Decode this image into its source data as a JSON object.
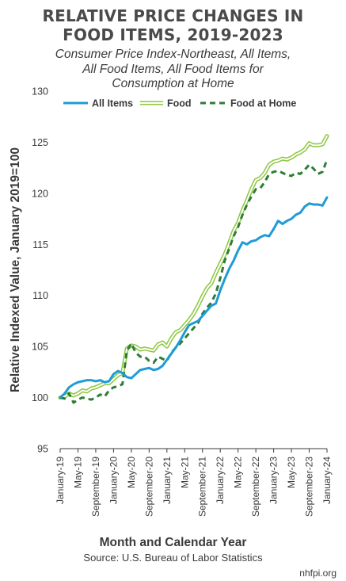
{
  "title_line1": "RELATIVE PRICE CHANGES IN",
  "title_line2": "FOOD ITEMS, 2019-2023",
  "subtitle_line1": "Consumer Price Index-Northeast, All Items,",
  "subtitle_line2": "All Food Items, All Food Items for",
  "subtitle_line3": "Consumption at Home",
  "source": "Source: U.S. Bureau of Labor Statistics",
  "credit": "nhfpi.org",
  "colors": {
    "all_items": "#1f9bd7",
    "food": "#8cc63f",
    "food_at_home": "#2e7d32"
  },
  "chart_data": {
    "type": "line",
    "title": "RELATIVE PRICE CHANGES IN FOOD ITEMS, 2019-2023",
    "subtitle": "Consumer Price Index-Northeast, All Items, All Food Items, All Food Items for Consumption at Home",
    "xlabel": "Month and Calendar Year",
    "ylabel": "Relative Indexed Value, January 2019=100",
    "ylim": [
      95,
      130
    ],
    "yticks": [
      95,
      100,
      105,
      110,
      115,
      120,
      125,
      130
    ],
    "grid": false,
    "legend_position": "top",
    "x_tick_labels": [
      "January-19",
      "May-19",
      "September-19",
      "January-20",
      "May-20",
      "September-20",
      "January-21",
      "May-21",
      "September-21",
      "January-22",
      "May-22",
      "September-22",
      "January-23",
      "May-23",
      "September-23",
      "January-24"
    ],
    "x_start": "January-19",
    "series": [
      {
        "name": "All Items",
        "style": "solid",
        "values": [
          100.0,
          100.4,
          101.0,
          101.3,
          101.5,
          101.6,
          101.7,
          101.7,
          101.6,
          101.7,
          101.5,
          101.6,
          102.3,
          102.6,
          102.4,
          102.0,
          101.9,
          102.3,
          102.7,
          102.8,
          102.9,
          102.7,
          102.8,
          103.1,
          103.7,
          104.3,
          104.9,
          105.6,
          106.4,
          107.1,
          107.3,
          107.5,
          108.0,
          108.5,
          109.0,
          109.2,
          110.5,
          111.6,
          112.6,
          113.4,
          114.4,
          115.2,
          115.0,
          115.3,
          115.4,
          115.7,
          115.9,
          115.8,
          116.5,
          117.3,
          117.0,
          117.3,
          117.5,
          117.9,
          118.1,
          118.7,
          119.0,
          118.9,
          118.9,
          118.8,
          119.6
        ]
      },
      {
        "name": "Food",
        "style": "outline",
        "values": [
          100.0,
          100.1,
          100.4,
          100.2,
          100.4,
          100.7,
          100.6,
          100.9,
          101.0,
          101.2,
          101.4,
          101.4,
          101.8,
          102.2,
          102.4,
          104.8,
          105.1,
          105.0,
          104.7,
          104.8,
          104.7,
          104.6,
          105.2,
          105.4,
          105.0,
          105.8,
          106.4,
          106.6,
          107.1,
          107.6,
          108.2,
          109.0,
          109.9,
          110.7,
          111.2,
          112.2,
          113.1,
          114.0,
          115.1,
          116.3,
          117.1,
          118.3,
          119.3,
          120.4,
          121.3,
          121.5,
          122.0,
          122.8,
          123.1,
          123.2,
          123.4,
          123.3,
          123.5,
          123.8,
          124.0,
          124.3,
          124.9,
          124.7,
          124.7,
          124.8,
          125.6
        ]
      },
      {
        "name": "Food at Home",
        "style": "dashed",
        "values": [
          100.0,
          99.9,
          100.4,
          99.5,
          99.8,
          100.0,
          99.9,
          99.8,
          100.0,
          100.3,
          100.1,
          100.7,
          101.0,
          101.1,
          101.3,
          104.6,
          105.3,
          104.4,
          104.0,
          104.0,
          103.6,
          103.4,
          104.0,
          103.8,
          103.6,
          104.4,
          104.9,
          105.3,
          105.8,
          106.3,
          106.8,
          107.3,
          108.2,
          108.8,
          109.3,
          110.2,
          111.7,
          113.4,
          114.6,
          115.8,
          116.7,
          117.9,
          118.9,
          119.7,
          120.4,
          120.5,
          121.1,
          121.9,
          122.1,
          122.2,
          122.0,
          121.8,
          121.7,
          122.0,
          121.9,
          122.3,
          122.8,
          122.4,
          121.9,
          122.1,
          123.3
        ]
      }
    ]
  }
}
